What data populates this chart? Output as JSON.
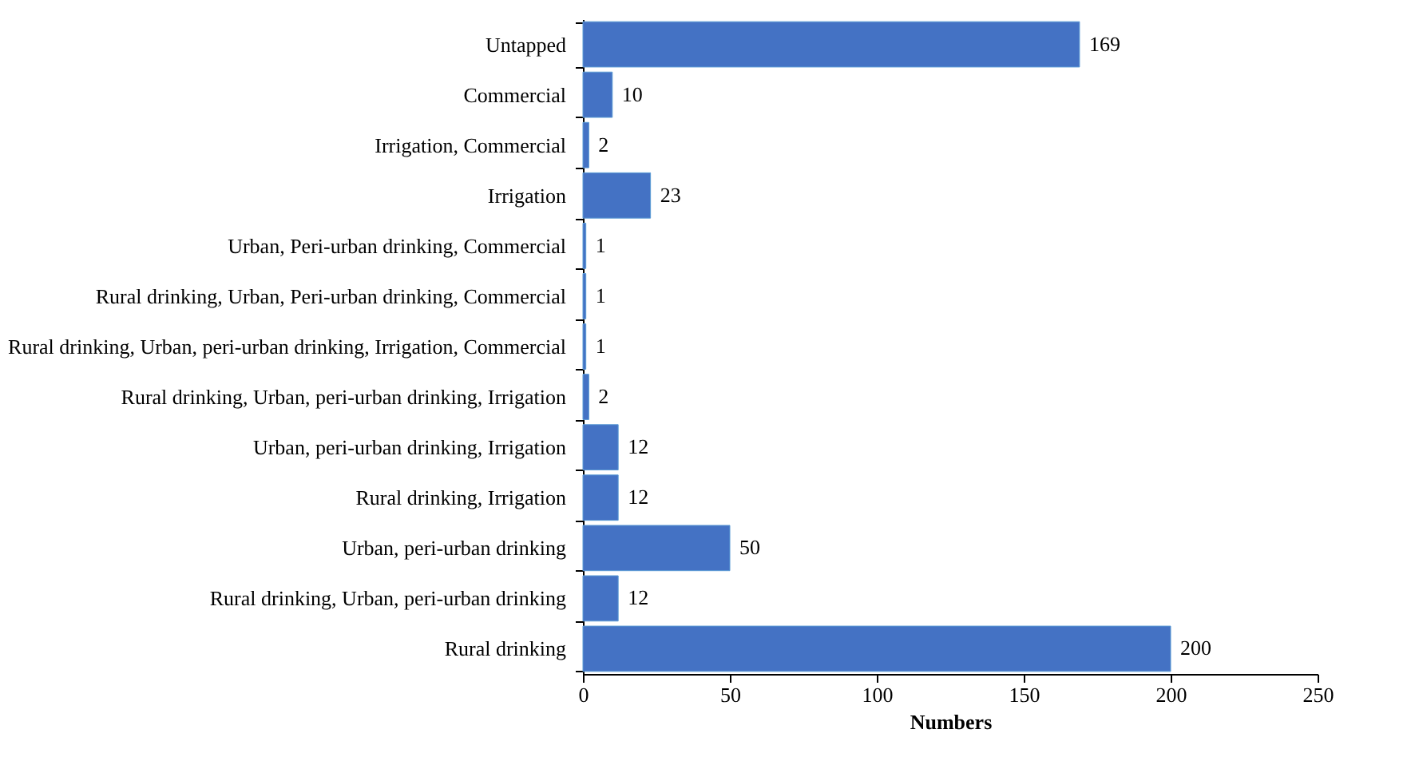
{
  "chart_data": {
    "type": "bar",
    "orientation": "horizontal",
    "xlabel": "Numbers",
    "categories": [
      "Untapped",
      "Commercial",
      "Irrigation, Commercial",
      "Irrigation",
      "Urban, Peri-urban drinking, Commercial",
      "Rural drinking, Urban, Peri-urban drinking, Commercial",
      "Rural drinking, Urban, peri-urban drinking, Irrigation, Commercial",
      "Rural drinking, Urban, peri-urban drinking, Irrigation",
      "Urban, peri-urban drinking, Irrigation",
      "Rural drinking, Irrigation ",
      "Urban, peri-urban drinking",
      "Rural drinking, Urban,  peri-urban drinking",
      "Rural drinking"
    ],
    "values": [
      169,
      10,
      2,
      23,
      1,
      1,
      1,
      2,
      12,
      12,
      50,
      12,
      200
    ],
    "color": "#4472c4",
    "xlim": [
      0,
      250
    ],
    "xticks": [
      0,
      50,
      100,
      150,
      200,
      250
    ],
    "grid": false,
    "data_labels": true
  }
}
